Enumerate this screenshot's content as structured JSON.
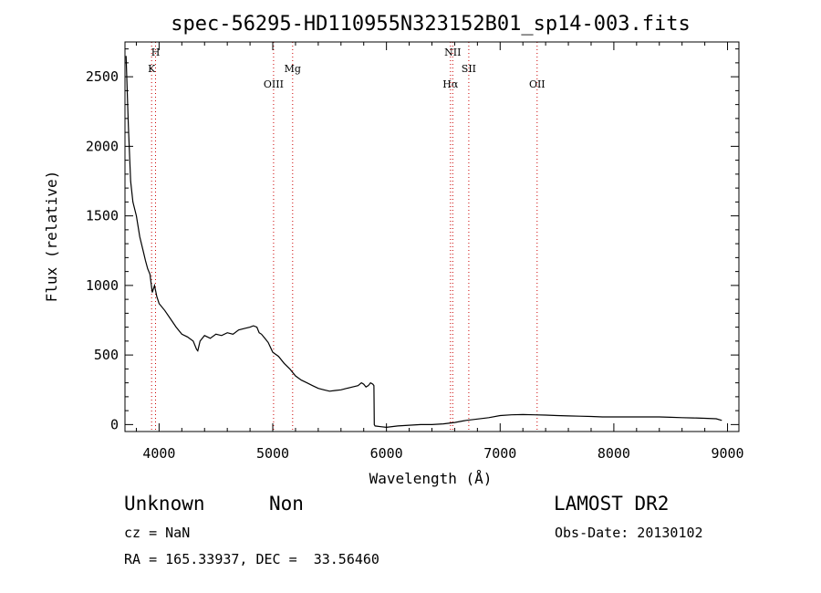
{
  "chart_data": {
    "type": "line",
    "title": "spec-56295-HD110955N323152B01_sp14-003.fits",
    "xlabel": "Wavelength (Å)",
    "ylabel": "Flux (relative)",
    "xlim": [
      3700,
      9100
    ],
    "ylim": [
      -50,
      2750
    ],
    "x_ticks": [
      4000,
      5000,
      6000,
      7000,
      8000,
      9000
    ],
    "y_ticks": [
      0,
      500,
      1000,
      1500,
      2000,
      2500
    ],
    "grid": false,
    "legend": "none",
    "line_color": "#000000",
    "marker_color": "#cc0000",
    "series": [
      {
        "x": [
          3710,
          3730,
          3750,
          3770,
          3800,
          3830,
          3860,
          3880,
          3900,
          3920,
          3940,
          3960,
          3980,
          4000,
          4050,
          4100,
          4150,
          4200,
          4250,
          4300,
          4330,
          4340,
          4360,
          4400,
          4450,
          4500,
          4550,
          4600,
          4650,
          4700,
          4750,
          4800,
          4830,
          4860,
          4880,
          4900,
          4930,
          4960,
          5000,
          5050,
          5100,
          5150,
          5200,
          5250,
          5300,
          5350,
          5400,
          5450,
          5500,
          5550,
          5600,
          5650,
          5700,
          5750,
          5780,
          5800,
          5820,
          5840,
          5860,
          5880,
          5890,
          5893,
          5900,
          5950,
          6000,
          6100,
          6200,
          6300,
          6400,
          6500,
          6600,
          6700,
          6800,
          6900,
          7000,
          7100,
          7200,
          7300,
          7400,
          7500,
          7600,
          7700,
          7800,
          7900,
          8000,
          8100,
          8200,
          8300,
          8400,
          8500,
          8600,
          8700,
          8800,
          8900,
          8950
        ],
        "y": [
          2650,
          2150,
          1750,
          1600,
          1500,
          1350,
          1250,
          1180,
          1120,
          1080,
          950,
          1000,
          920,
          870,
          820,
          760,
          700,
          650,
          630,
          600,
          540,
          530,
          600,
          640,
          620,
          650,
          640,
          660,
          650,
          680,
          690,
          700,
          710,
          700,
          660,
          650,
          620,
          590,
          520,
          490,
          440,
          400,
          350,
          320,
          300,
          280,
          260,
          250,
          240,
          245,
          250,
          260,
          270,
          280,
          300,
          290,
          270,
          280,
          300,
          290,
          280,
          0,
          -10,
          -15,
          -20,
          -10,
          -5,
          0,
          0,
          5,
          15,
          30,
          40,
          50,
          65,
          70,
          72,
          70,
          68,
          65,
          62,
          60,
          58,
          55,
          55,
          55,
          55,
          55,
          55,
          52,
          50,
          48,
          45,
          42,
          30
        ]
      }
    ],
    "lines": [
      {
        "name": "K",
        "wavelength": 3934
      },
      {
        "name": "H",
        "wavelength": 3969
      },
      {
        "name": "OIII",
        "wavelength": 5007
      },
      {
        "name": "Mg",
        "wavelength": 5175
      },
      {
        "name": "Hα",
        "wavelength": 6563
      },
      {
        "name": "NII",
        "wavelength": 6583
      },
      {
        "name": "OII",
        "wavelength": 7325
      },
      {
        "name": "SII",
        "wavelength": 6724
      }
    ]
  },
  "info": {
    "class_label": "Unknown",
    "subclass_label": "Non",
    "survey": "LAMOST DR2",
    "cz_text": "cz = NaN",
    "obs_date_text": "Obs-Date: 20130102",
    "coords_text": "RA = 165.33937, DEC =  33.56460"
  }
}
